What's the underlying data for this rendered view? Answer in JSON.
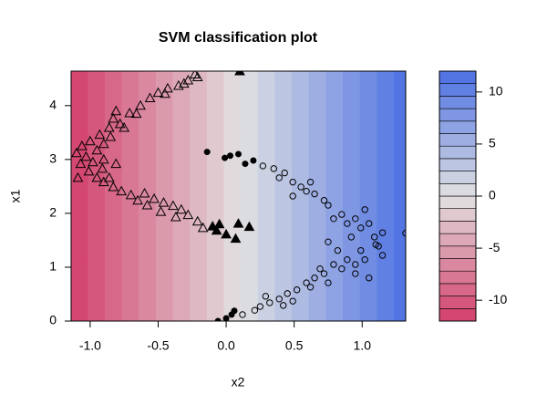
{
  "chart_data": {
    "type": "contour",
    "title": "SVM classification plot",
    "xlabel": "x2",
    "ylabel": "x1",
    "xlim": [
      -1.14,
      1.32
    ],
    "ylim": [
      0,
      4.64
    ],
    "xticks": [
      {
        "value": -1,
        "label": "-1.0"
      },
      -0.5,
      {
        "value": 0,
        "label": "0.0"
      },
      0.5,
      {
        "value": 1,
        "label": "1.0"
      }
    ],
    "yticks": [
      0,
      1,
      2,
      3,
      4
    ],
    "grid_x": [
      -1.08,
      -0.955,
      -0.83,
      -0.705,
      -0.58,
      -0.455,
      -0.33,
      -0.205,
      -0.08,
      0.045,
      0.17,
      0.295,
      0.42,
      0.545,
      0.67,
      0.795,
      0.92,
      1.045,
      1.17,
      1.295
    ],
    "grid_y": [
      0.58,
      1.74,
      2.9,
      4.06
    ],
    "z": [
      [
        -11.1,
        -9.9,
        -8.7,
        -7.4,
        -6.2,
        -5.0,
        -3.8,
        -2.6,
        -1.4,
        -0.2,
        1.0,
        2.3,
        3.5,
        4.7,
        5.9,
        7.1,
        8.3,
        9.5,
        10.7,
        11.9
      ],
      [
        -11.3,
        -10.1,
        -8.9,
        -7.7,
        -6.5,
        -5.3,
        -4.0,
        -2.8,
        -1.6,
        -0.4,
        0.8,
        2.0,
        3.2,
        4.5,
        5.7,
        6.9,
        8.1,
        9.3,
        10.5,
        11.7
      ],
      [
        -11.5,
        -10.3,
        -9.1,
        -7.9,
        -6.7,
        -5.5,
        -4.3,
        -3.1,
        -1.8,
        -0.6,
        0.6,
        1.8,
        3.0,
        4.2,
        5.4,
        6.7,
        7.9,
        9.1,
        10.3,
        11.5
      ],
      [
        -11.8,
        -10.6,
        -9.4,
        -8.1,
        -6.9,
        -5.7,
        -4.5,
        -3.3,
        -2.1,
        -0.9,
        0.4,
        1.6,
        2.8,
        4.0,
        5.2,
        6.4,
        7.6,
        8.8,
        10.1,
        11.3
      ]
    ],
    "zlim": [
      -12,
      12
    ],
    "nlevels": 20,
    "zticks": [
      -10,
      -5,
      0,
      5,
      10
    ],
    "palette": [
      "#d33f6a",
      "#e2e2e2",
      "#4a6fe3"
    ],
    "series": [
      {
        "marker": "triangle",
        "filled": false,
        "x": [
          -0.23,
          -0.28,
          -0.35,
          -0.43,
          -0.5,
          -0.56,
          -0.63,
          -0.71,
          -0.81,
          -0.83,
          -0.78,
          -0.86,
          -0.93,
          -1.0,
          -1.06,
          -1.1,
          -1.03,
          -0.95,
          -0.9,
          -0.85,
          -0.31,
          -0.21,
          -0.45,
          -0.66,
          -0.75,
          -1.07,
          -1.01,
          -0.95,
          -0.9,
          -0.83,
          -0.77,
          -0.7,
          -0.6,
          -0.53,
          -0.46,
          -0.39,
          -0.33,
          -0.28,
          -0.21,
          -0.17,
          -0.37,
          -0.48,
          -0.91,
          -0.86,
          -0.98,
          -0.65,
          -0.58,
          -1.09,
          -0.81,
          -0.9
        ],
        "y": [
          4.58,
          4.47,
          4.37,
          4.32,
          4.24,
          4.14,
          4.0,
          3.86,
          3.9,
          3.76,
          3.66,
          3.59,
          3.46,
          3.34,
          3.25,
          3.12,
          3.05,
          3.17,
          3.29,
          3.42,
          4.41,
          4.53,
          4.22,
          3.85,
          3.59,
          2.92,
          2.78,
          2.66,
          2.58,
          2.49,
          2.41,
          2.34,
          2.37,
          2.27,
          2.2,
          2.14,
          2.07,
          1.97,
          1.85,
          1.73,
          1.93,
          2.03,
          2.83,
          2.66,
          2.95,
          2.24,
          2.15,
          2.66,
          2.92,
          3.0
        ]
      },
      {
        "marker": "triangle",
        "filled": true,
        "x": [
          -0.1,
          -0.07,
          -0.05,
          0.0,
          0.09,
          0.07,
          0.17,
          0.1
        ],
        "y": [
          1.76,
          1.68,
          1.8,
          1.61,
          1.81,
          1.53,
          1.75,
          4.64
        ]
      },
      {
        "marker": "circle",
        "filled": false,
        "x": [
          0.27,
          0.35,
          0.39,
          0.43,
          0.49,
          0.55,
          0.59,
          0.65,
          0.72,
          0.75,
          0.49,
          0.62,
          0.79,
          0.85,
          0.89,
          0.95,
          1.02,
          0.99,
          1.05,
          1.09,
          1.12,
          1.15,
          0.92,
          0.82,
          0.75,
          0.99,
          0.89,
          0.85,
          0.95,
          1.02,
          1.1,
          1.32,
          1.15,
          1.05,
          0.95,
          0.79,
          0.72,
          0.65,
          0.59,
          0.52,
          0.45,
          0.39,
          0.32,
          0.25,
          0.21,
          0.12,
          0.29,
          0.49,
          0.62,
          0.69,
          0.75,
          0.42
        ],
        "y": [
          2.88,
          2.83,
          2.66,
          2.75,
          2.58,
          2.49,
          2.41,
          2.36,
          2.24,
          2.15,
          2.32,
          2.58,
          1.9,
          1.98,
          1.81,
          1.9,
          2.07,
          1.73,
          1.81,
          1.56,
          1.39,
          1.64,
          1.56,
          1.31,
          1.47,
          1.31,
          1.14,
          0.97,
          1.05,
          1.14,
          1.42,
          1.63,
          1.22,
          0.8,
          0.88,
          1.05,
          0.88,
          0.8,
          0.71,
          0.58,
          0.51,
          0.41,
          0.34,
          0.27,
          0.2,
          0.12,
          0.46,
          0.37,
          0.63,
          0.97,
          0.71,
          0.29
        ]
      },
      {
        "marker": "circle",
        "filled": true,
        "x": [
          -0.14,
          -0.01,
          0.03,
          0.09,
          0.14,
          0.2,
          -0.06,
          0.0,
          0.04,
          0.06
        ],
        "y": [
          3.14,
          3.03,
          3.07,
          3.1,
          2.92,
          2.98,
          0.0,
          0.05,
          0.12,
          0.19
        ]
      }
    ]
  }
}
